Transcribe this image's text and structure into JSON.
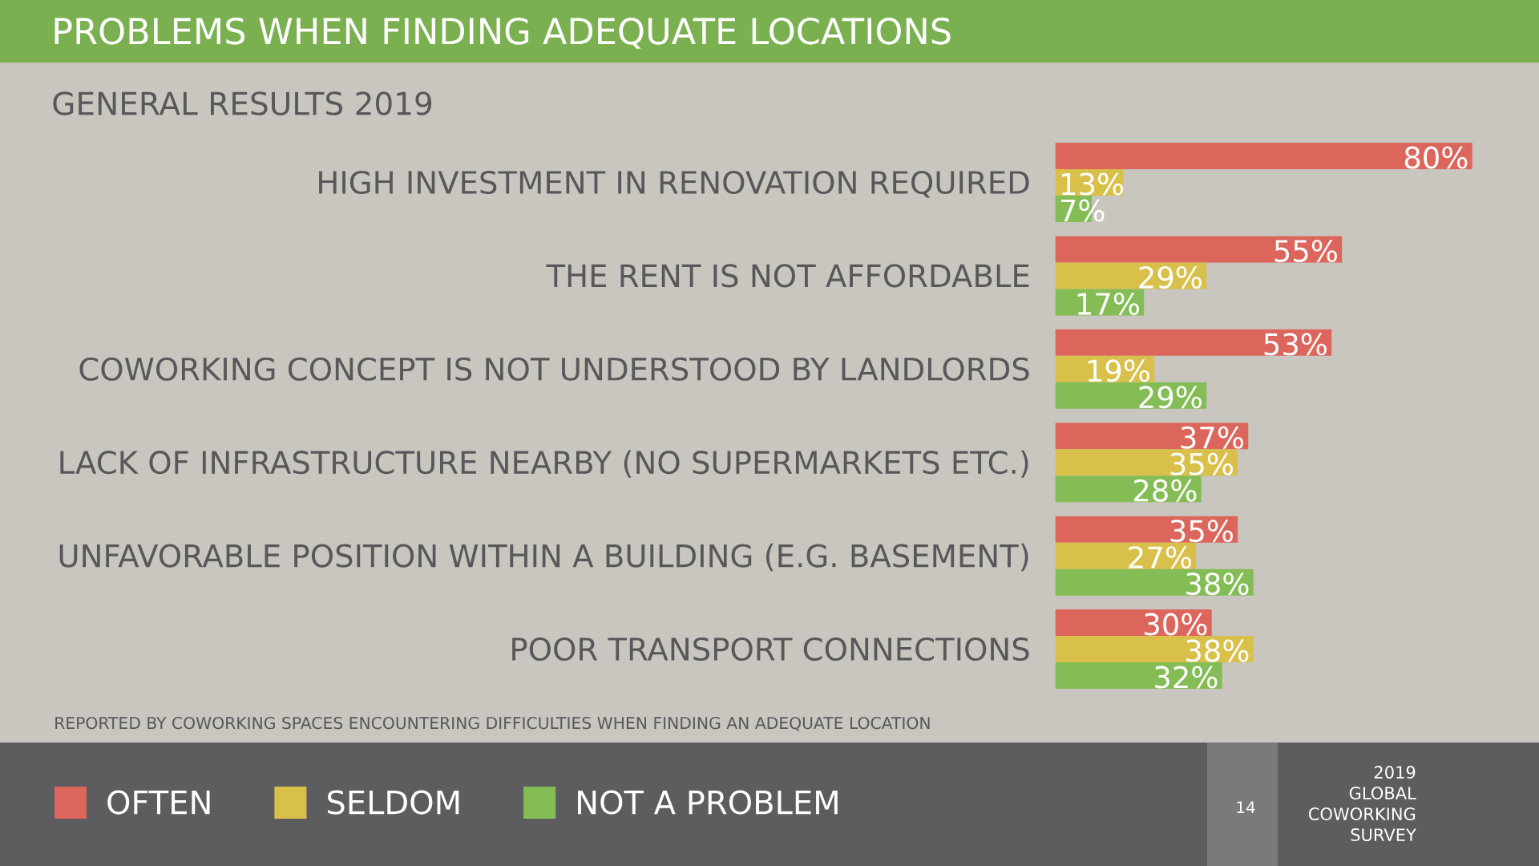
{
  "chart_data": {
    "type": "bar",
    "orientation": "horizontal",
    "title": "PROBLEMS WHEN FINDING ADEQUATE LOCATIONS",
    "subtitle": "GENERAL RESULTS 2019",
    "categories": [
      "HIGH INVESTMENT IN RENOVATION REQUIRED",
      "THE RENT IS NOT AFFORDABLE",
      "COWORKING CONCEPT IS NOT UNDERSTOOD BY LANDLORDS",
      "LACK OF INFRASTRUCTURE NEARBY (NO SUPERMARKETS ETC.)",
      "UNFAVORABLE POSITION WITHIN A BUILDING (E.G. BASEMENT)",
      "POOR TRANSPORT CONNECTIONS"
    ],
    "series": [
      {
        "name": "OFTEN",
        "color": "#dc665c",
        "values": [
          80,
          55,
          53,
          37,
          35,
          30
        ],
        "value_labels": [
          "80%",
          "55%",
          "53%",
          "37%",
          "35%",
          "30%"
        ]
      },
      {
        "name": "SELDOM",
        "color": "#d9c04a",
        "values": [
          13,
          29,
          19,
          35,
          27,
          38
        ],
        "value_labels": [
          "13%",
          "29%",
          "19%",
          "35%",
          "27%",
          "38%"
        ]
      },
      {
        "name": "NOT A PROBLEM",
        "color": "#84bd55",
        "values": [
          7,
          17,
          29,
          28,
          38,
          32
        ],
        "value_labels": [
          "7%",
          "17%",
          "29%",
          "28%",
          "38%",
          "32%"
        ]
      }
    ],
    "legend": "bottom",
    "annotations": [
      "REPORTED BY COWORKING SPACES ENCOUNTERING DIFFICULTIES WHEN FINDING AN ADEQUATE LOCATION",
      "14",
      "2019",
      "GLOBAL",
      "COWORKING",
      "SURVEY"
    ]
  }
}
